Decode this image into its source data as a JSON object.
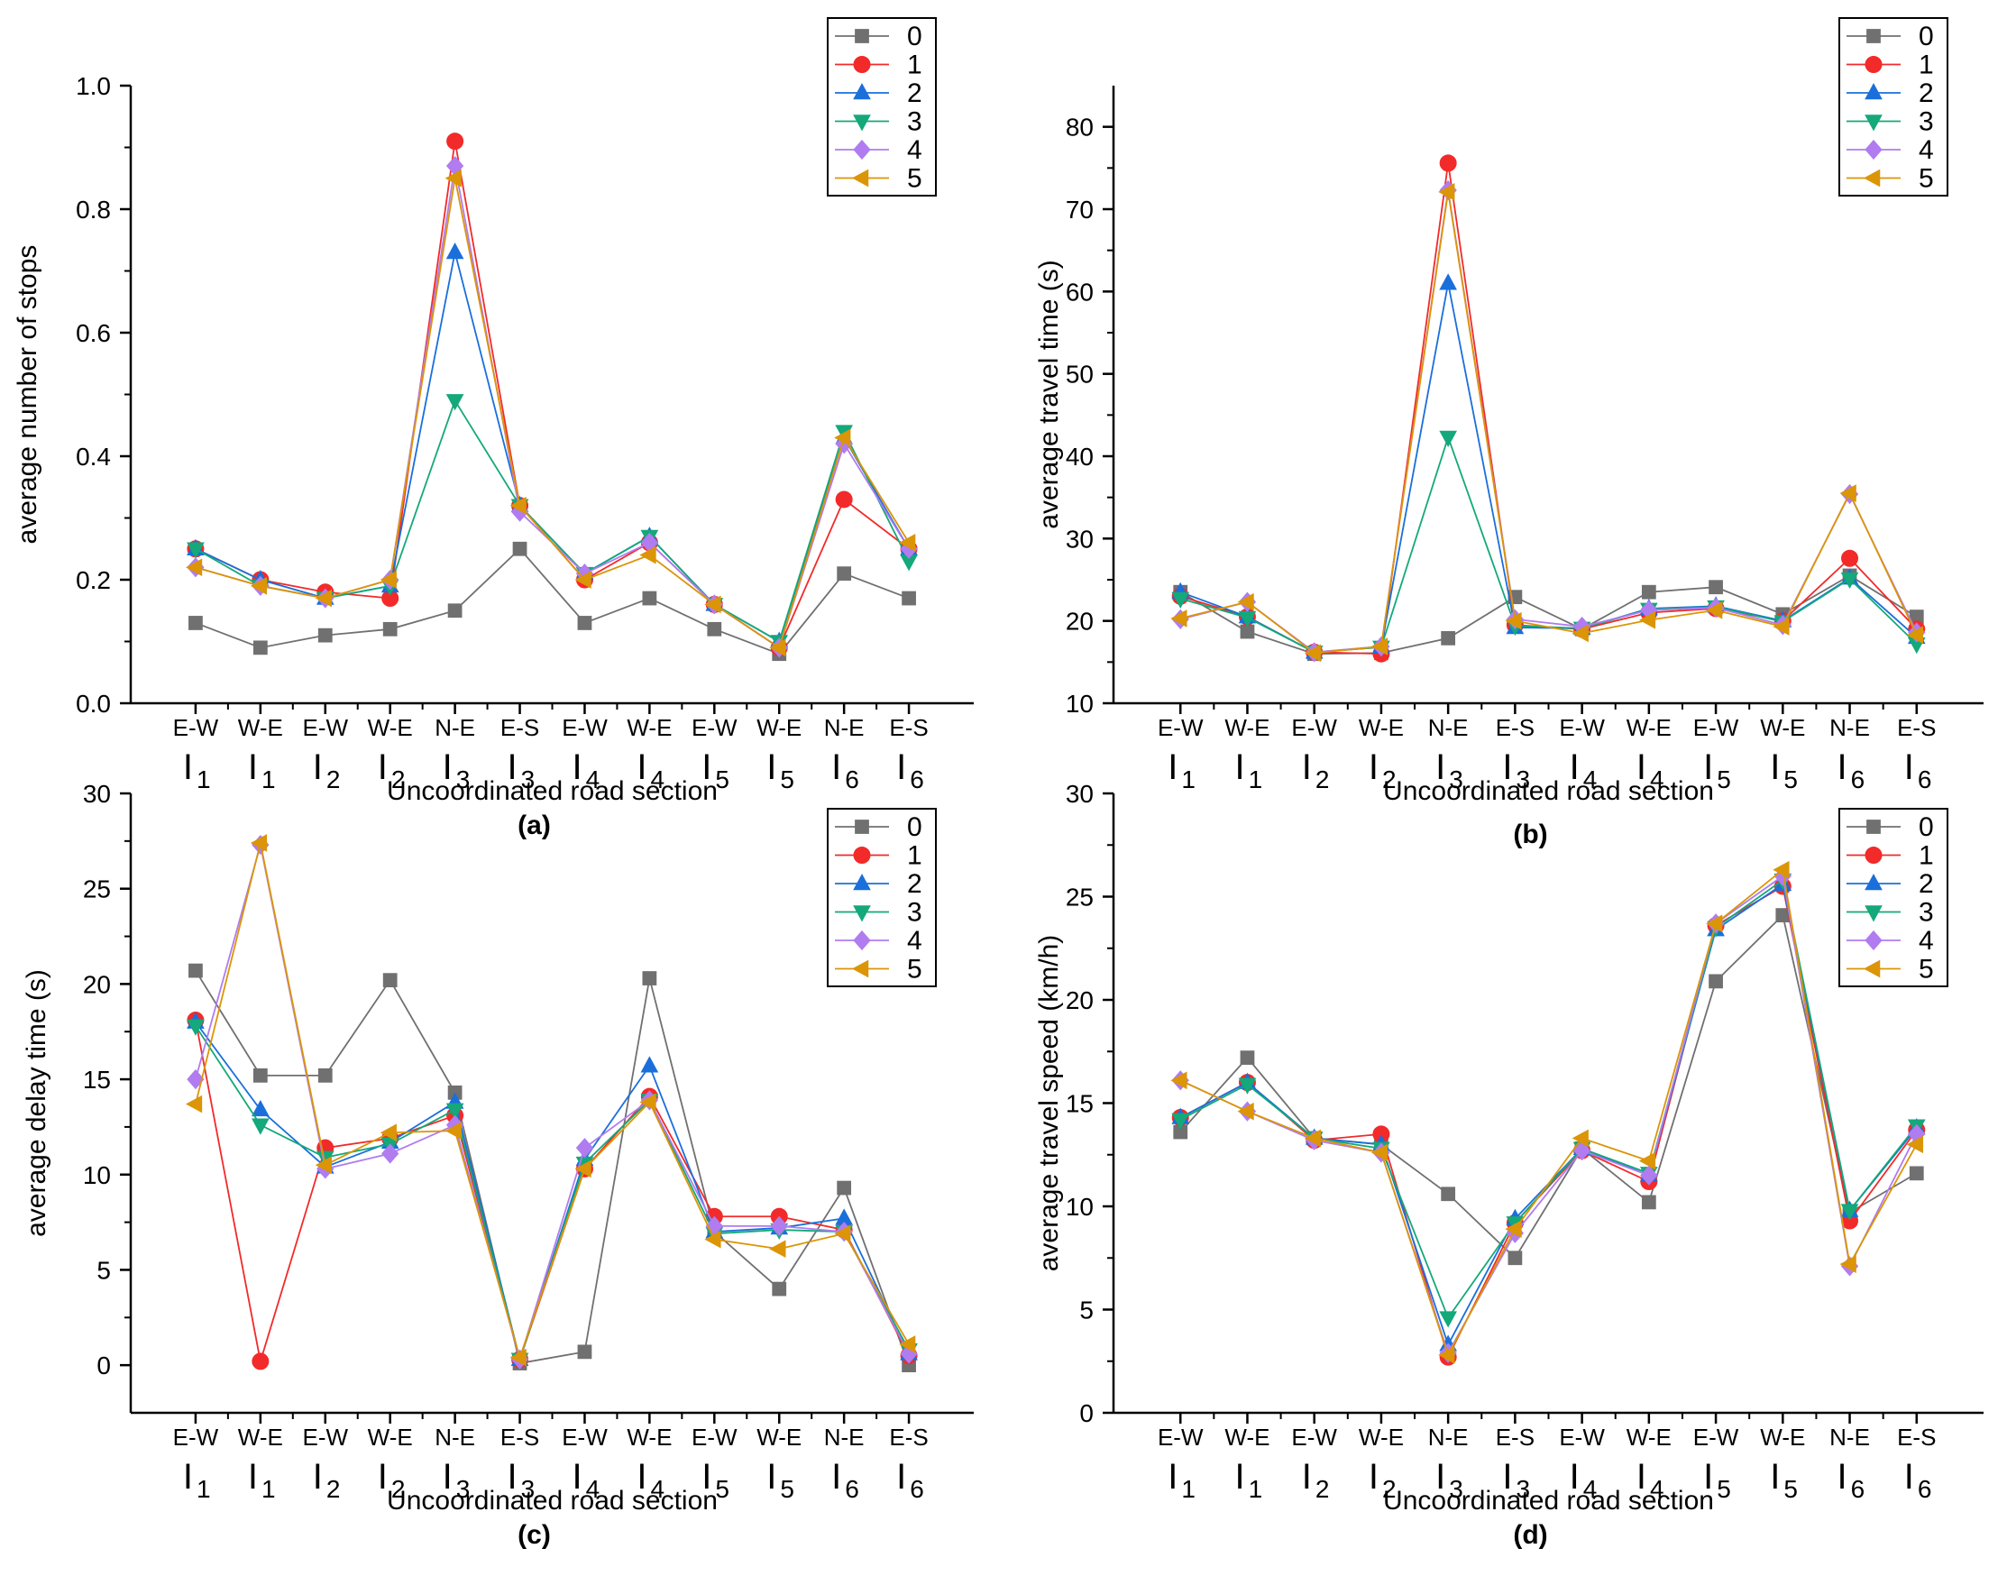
{
  "figure": {
    "legend_entries": [
      "0",
      "1",
      "2",
      "3",
      "4",
      "5"
    ],
    "series_styles": [
      {
        "name": "0",
        "color": "#707070",
        "marker": "square"
      },
      {
        "name": "1",
        "color": "#f22a2a",
        "marker": "circle"
      },
      {
        "name": "2",
        "color": "#1a6fdb",
        "marker": "triangle-up"
      },
      {
        "name": "3",
        "color": "#14a87a",
        "marker": "triangle-down"
      },
      {
        "name": "4",
        "color": "#b07cf0",
        "marker": "diamond"
      },
      {
        "name": "5",
        "color": "#db9507",
        "marker": "triangle-left"
      }
    ]
  },
  "chart_data": [
    {
      "type": "line",
      "panel_label": "(a)",
      "title": "",
      "xlabel": "Uncoordinated road section",
      "ylabel": "average number of stops",
      "ylim": [
        0,
        1.0
      ],
      "yticks": [
        "0.0",
        "0.2",
        "0.4",
        "0.6",
        "0.8",
        "1.0"
      ],
      "categories": [
        {
          "dir": "E-W",
          "base": "I",
          "sub": "1"
        },
        {
          "dir": "W-E",
          "base": "I",
          "sub": "1"
        },
        {
          "dir": "E-W",
          "base": "I",
          "sub": "2"
        },
        {
          "dir": "W-E",
          "base": "I",
          "sub": "2"
        },
        {
          "dir": "N-E",
          "base": "I",
          "sub": "3"
        },
        {
          "dir": "E-S",
          "base": "I",
          "sub": "3"
        },
        {
          "dir": "E-W",
          "base": "I",
          "sub": "4"
        },
        {
          "dir": "W-E",
          "base": "I",
          "sub": "4"
        },
        {
          "dir": "E-W",
          "base": "I",
          "sub": "5"
        },
        {
          "dir": "W-E",
          "base": "I",
          "sub": "5"
        },
        {
          "dir": "N-E",
          "base": "I",
          "sub": "6"
        },
        {
          "dir": "E-S",
          "base": "I",
          "sub": "6"
        }
      ],
      "series": [
        {
          "name": "0",
          "values": [
            0.13,
            0.09,
            0.11,
            0.12,
            0.15,
            0.25,
            0.13,
            0.17,
            0.12,
            0.08,
            0.21,
            0.17
          ]
        },
        {
          "name": "1",
          "values": [
            0.25,
            0.2,
            0.18,
            0.17,
            0.91,
            0.32,
            0.2,
            0.26,
            0.16,
            0.09,
            0.33,
            0.25
          ]
        },
        {
          "name": "2",
          "values": [
            0.25,
            0.2,
            0.17,
            0.19,
            0.73,
            0.32,
            0.21,
            0.27,
            0.16,
            0.1,
            0.43,
            0.25
          ]
        },
        {
          "name": "3",
          "values": [
            0.25,
            0.19,
            0.17,
            0.19,
            0.49,
            0.32,
            0.21,
            0.27,
            0.16,
            0.1,
            0.44,
            0.23
          ]
        },
        {
          "name": "4",
          "values": [
            0.22,
            0.19,
            0.17,
            0.2,
            0.87,
            0.31,
            0.21,
            0.26,
            0.16,
            0.09,
            0.42,
            0.25
          ]
        },
        {
          "name": "5",
          "values": [
            0.22,
            0.19,
            0.17,
            0.2,
            0.85,
            0.32,
            0.2,
            0.24,
            0.16,
            0.09,
            0.43,
            0.26
          ]
        }
      ]
    },
    {
      "type": "line",
      "panel_label": "(b)",
      "title": "",
      "xlabel": "Uncoordinated road section",
      "ylabel": "average travel time (s)",
      "ylim": [
        10,
        85
      ],
      "yticks": [
        "10",
        "20",
        "30",
        "40",
        "50",
        "60",
        "70",
        "80"
      ],
      "categories": [
        {
          "dir": "E-W",
          "base": "I",
          "sub": "1"
        },
        {
          "dir": "W-E",
          "base": "I",
          "sub": "1"
        },
        {
          "dir": "E-W",
          "base": "I",
          "sub": "2"
        },
        {
          "dir": "W-E",
          "base": "I",
          "sub": "2"
        },
        {
          "dir": "N-E",
          "base": "I",
          "sub": "3"
        },
        {
          "dir": "E-S",
          "base": "I",
          "sub": "3"
        },
        {
          "dir": "E-W",
          "base": "I",
          "sub": "4"
        },
        {
          "dir": "W-E",
          "base": "I",
          "sub": "4"
        },
        {
          "dir": "E-W",
          "base": "I",
          "sub": "5"
        },
        {
          "dir": "W-E",
          "base": "I",
          "sub": "5"
        },
        {
          "dir": "N-E",
          "base": "I",
          "sub": "6"
        },
        {
          "dir": "E-S",
          "base": "I",
          "sub": "6"
        }
      ],
      "series": [
        {
          "name": "0",
          "values": [
            23.5,
            18.7,
            16.0,
            16.1,
            17.9,
            22.9,
            19.0,
            23.5,
            24.1,
            20.8,
            25.5,
            20.5
          ]
        },
        {
          "name": "1",
          "values": [
            23.0,
            20.5,
            16.2,
            16.0,
            75.6,
            19.5,
            19.0,
            21.0,
            21.5,
            20.0,
            27.6,
            19.0
          ]
        },
        {
          "name": "2",
          "values": [
            23.5,
            20.5,
            16.2,
            16.8,
            61.0,
            19.2,
            19.1,
            21.5,
            21.8,
            20.0,
            25.2,
            18.0
          ]
        },
        {
          "name": "3",
          "values": [
            22.7,
            20.4,
            16.2,
            16.8,
            42.3,
            19.4,
            19.1,
            21.4,
            21.7,
            19.9,
            25.1,
            17.2
          ]
        },
        {
          "name": "4",
          "values": [
            20.2,
            22.3,
            16.2,
            16.9,
            72.3,
            20.2,
            19.3,
            21.3,
            21.6,
            19.5,
            35.4,
            18.6
          ]
        },
        {
          "name": "5",
          "values": [
            20.3,
            22.3,
            16.1,
            16.9,
            72.1,
            20.0,
            18.5,
            20.1,
            21.3,
            19.3,
            35.5,
            18.3
          ]
        }
      ]
    },
    {
      "type": "line",
      "panel_label": "(c)",
      "title": "",
      "xlabel": "Uncoordinated road section",
      "ylabel": "average delay time (s)",
      "ylim": [
        -2.5,
        30
      ],
      "yticks": [
        "0",
        "5",
        "10",
        "15",
        "20",
        "25",
        "30"
      ],
      "categories": [
        {
          "dir": "E-W",
          "base": "I",
          "sub": "1"
        },
        {
          "dir": "W-E",
          "base": "I",
          "sub": "1"
        },
        {
          "dir": "E-W",
          "base": "I",
          "sub": "2"
        },
        {
          "dir": "W-E",
          "base": "I",
          "sub": "2"
        },
        {
          "dir": "N-E",
          "base": "I",
          "sub": "3"
        },
        {
          "dir": "E-S",
          "base": "I",
          "sub": "3"
        },
        {
          "dir": "E-W",
          "base": "I",
          "sub": "4"
        },
        {
          "dir": "W-E",
          "base": "I",
          "sub": "4"
        },
        {
          "dir": "E-W",
          "base": "I",
          "sub": "5"
        },
        {
          "dir": "W-E",
          "base": "I",
          "sub": "5"
        },
        {
          "dir": "N-E",
          "base": "I",
          "sub": "6"
        },
        {
          "dir": "E-S",
          "base": "I",
          "sub": "6"
        }
      ],
      "series": [
        {
          "name": "0",
          "values": [
            20.7,
            15.2,
            15.2,
            20.2,
            14.3,
            0.1,
            0.7,
            20.3,
            7.0,
            4.0,
            9.3,
            0.0
          ]
        },
        {
          "name": "1",
          "values": [
            18.1,
            0.2,
            11.4,
            11.9,
            13.1,
            0.3,
            10.3,
            14.1,
            7.8,
            7.8,
            7.1,
            0.5
          ]
        },
        {
          "name": "2",
          "values": [
            18.0,
            13.4,
            10.4,
            11.7,
            13.8,
            0.3,
            10.8,
            15.7,
            7.0,
            7.2,
            7.7,
            0.6
          ]
        },
        {
          "name": "3",
          "values": [
            17.8,
            12.6,
            10.9,
            11.6,
            13.4,
            0.3,
            10.6,
            13.9,
            6.9,
            7.1,
            7.0,
            0.8
          ]
        },
        {
          "name": "4",
          "values": [
            15.0,
            27.3,
            10.3,
            11.1,
            12.6,
            0.3,
            11.4,
            13.9,
            7.3,
            7.3,
            7.0,
            0.6
          ]
        },
        {
          "name": "5",
          "values": [
            13.7,
            27.4,
            10.5,
            12.2,
            12.3,
            0.4,
            10.3,
            13.8,
            6.6,
            6.1,
            6.9,
            1.1
          ]
        }
      ]
    },
    {
      "type": "line",
      "panel_label": "(d)",
      "title": "",
      "xlabel": "Uncoordinated road section",
      "ylabel": "average travel speed (km/h)",
      "ylim": [
        0,
        30
      ],
      "yticks": [
        "0",
        "5",
        "10",
        "15",
        "20",
        "25",
        "30"
      ],
      "categories": [
        {
          "dir": "E-W",
          "base": "I",
          "sub": "1"
        },
        {
          "dir": "W-E",
          "base": "I",
          "sub": "1"
        },
        {
          "dir": "E-W",
          "base": "I",
          "sub": "2"
        },
        {
          "dir": "W-E",
          "base": "I",
          "sub": "2"
        },
        {
          "dir": "N-E",
          "base": "I",
          "sub": "3"
        },
        {
          "dir": "E-S",
          "base": "I",
          "sub": "3"
        },
        {
          "dir": "E-W",
          "base": "I",
          "sub": "4"
        },
        {
          "dir": "W-E",
          "base": "I",
          "sub": "4"
        },
        {
          "dir": "E-W",
          "base": "I",
          "sub": "5"
        },
        {
          "dir": "W-E",
          "base": "I",
          "sub": "5"
        },
        {
          "dir": "N-E",
          "base": "I",
          "sub": "6"
        },
        {
          "dir": "E-S",
          "base": "I",
          "sub": "6"
        }
      ],
      "series": [
        {
          "name": "0",
          "values": [
            13.6,
            17.2,
            13.3,
            13.0,
            10.6,
            7.5,
            12.8,
            10.2,
            20.9,
            24.1,
            9.7,
            11.6
          ]
        },
        {
          "name": "1",
          "values": [
            14.3,
            16.0,
            13.2,
            13.5,
            2.7,
            9.2,
            12.7,
            11.2,
            23.6,
            25.5,
            9.3,
            13.7
          ]
        },
        {
          "name": "2",
          "values": [
            14.3,
            16.0,
            13.3,
            13.0,
            3.3,
            9.4,
            12.8,
            11.5,
            23.4,
            25.6,
            9.8,
            13.8
          ]
        },
        {
          "name": "3",
          "values": [
            14.2,
            15.9,
            13.3,
            12.8,
            4.6,
            9.2,
            12.8,
            11.6,
            23.5,
            25.8,
            9.8,
            13.9
          ]
        },
        {
          "name": "4",
          "values": [
            16.1,
            14.6,
            13.2,
            12.6,
            2.9,
            8.7,
            12.7,
            11.5,
            23.7,
            26.0,
            7.1,
            13.5
          ]
        },
        {
          "name": "5",
          "values": [
            16.1,
            14.6,
            13.3,
            12.6,
            2.8,
            8.9,
            13.3,
            12.2,
            23.7,
            26.3,
            7.2,
            13.0
          ]
        }
      ]
    }
  ]
}
